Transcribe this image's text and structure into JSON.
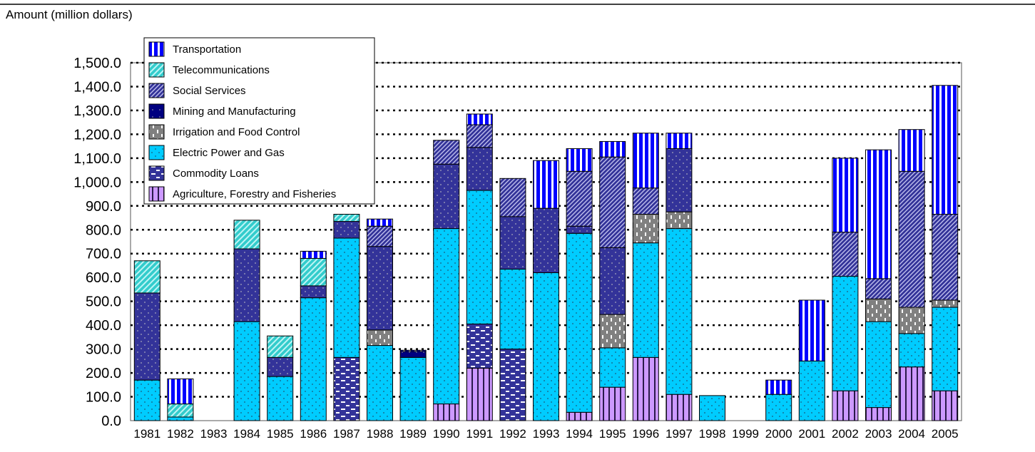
{
  "chart_data": {
    "type": "bar",
    "stacked": true,
    "ylabel": "Amount (million dollars)",
    "xlabel": "",
    "ylim": [
      0,
      1500
    ],
    "yticks": [
      0,
      100,
      200,
      300,
      400,
      500,
      600,
      700,
      800,
      900,
      1000,
      1100,
      1200,
      1300,
      1400,
      1500
    ],
    "ytick_labels": [
      "0.0",
      "100.0",
      "200.0",
      "300.0",
      "400.0",
      "500.0",
      "600.0",
      "700.0",
      "800.0",
      "900.0",
      "1,000.0",
      "1,100.0",
      "1,200.0",
      "1,300.0",
      "1,400.0",
      "1,500.0"
    ],
    "grid": "horizontal dotted",
    "legend_position": "top-left",
    "categories": [
      "1981",
      "1982",
      "1983",
      "1984",
      "1985",
      "1986",
      "1987",
      "1988",
      "1989",
      "1990",
      "1991",
      "1992",
      "1993",
      "1994",
      "1995",
      "1996",
      "1997",
      "1998",
      "1999",
      "2000",
      "2001",
      "2002",
      "2003",
      "2004",
      "2005"
    ],
    "series": [
      {
        "name": "Agriculture, Forestry and Fisheries",
        "color": "#cc99ff",
        "values": [
          0,
          0,
          0,
          0,
          0,
          0,
          0,
          0,
          0,
          70,
          220,
          0,
          0,
          35,
          140,
          265,
          110,
          0,
          0,
          0,
          0,
          125,
          55,
          225,
          125
        ]
      },
      {
        "name": "Commodity Loans",
        "color": "#1a3a8c",
        "values": [
          0,
          0,
          0,
          0,
          0,
          0,
          265,
          0,
          0,
          0,
          185,
          300,
          0,
          0,
          0,
          0,
          0,
          0,
          0,
          0,
          0,
          0,
          0,
          0,
          0
        ]
      },
      {
        "name": "Electric Power and Gas",
        "color": "#00ccff",
        "values": [
          170,
          15,
          0,
          415,
          185,
          515,
          500,
          315,
          265,
          735,
          560,
          335,
          620,
          750,
          165,
          480,
          695,
          105,
          0,
          110,
          250,
          480,
          360,
          140,
          350
        ]
      },
      {
        "name": "Irrigation and Food Control",
        "color": "#808080",
        "values": [
          0,
          0,
          0,
          0,
          0,
          0,
          0,
          65,
          0,
          0,
          0,
          0,
          0,
          0,
          140,
          120,
          70,
          0,
          0,
          0,
          0,
          0,
          95,
          110,
          30
        ]
      },
      {
        "name": "Mining and Manufacturing",
        "color": "#000080",
        "values": [
          0,
          0,
          0,
          0,
          0,
          0,
          0,
          0,
          25,
          0,
          0,
          0,
          0,
          0,
          0,
          0,
          0,
          0,
          0,
          0,
          0,
          0,
          0,
          0,
          0
        ]
      },
      {
        "name": "Social Services",
        "color": "#333399",
        "values": [
          365,
          0,
          0,
          305,
          80,
          50,
          70,
          350,
          0,
          270,
          180,
          220,
          270,
          30,
          280,
          0,
          265,
          0,
          0,
          0,
          0,
          0,
          0,
          0,
          0
        ]
      },
      {
        "name": "Social Services",
        "color": "#5555bb",
        "values": [
          0,
          0,
          0,
          0,
          0,
          0,
          0,
          85,
          0,
          100,
          95,
          160,
          0,
          230,
          380,
          110,
          0,
          0,
          0,
          0,
          0,
          185,
          85,
          570,
          360
        ]
      },
      {
        "name": "Telecommunications",
        "color": "#33cccc",
        "values": [
          135,
          55,
          0,
          120,
          90,
          115,
          30,
          0,
          0,
          0,
          0,
          0,
          0,
          0,
          0,
          0,
          0,
          0,
          0,
          0,
          0,
          0,
          0,
          0,
          0
        ]
      },
      {
        "name": "Transportation",
        "color": "#0000ff",
        "values": [
          0,
          105,
          0,
          0,
          0,
          30,
          0,
          30,
          5,
          0,
          45,
          0,
          200,
          95,
          65,
          230,
          65,
          0,
          0,
          60,
          255,
          310,
          540,
          175,
          540
        ]
      }
    ],
    "legend": [
      {
        "label": "Transportation",
        "color": "#0000ff",
        "pattern": "vstripe"
      },
      {
        "label": "Telecommunications",
        "color": "#33cccc",
        "pattern": "diag-light"
      },
      {
        "label": "Social Services",
        "color": "#5555bb",
        "pattern": "diag-dense"
      },
      {
        "label": "Mining and Manufacturing",
        "color": "#000080",
        "pattern": "dots-dark"
      },
      {
        "label": "Irrigation and Food Control",
        "color": "#808080",
        "pattern": "dash-v"
      },
      {
        "label": "Electric Power and Gas",
        "color": "#00ccff",
        "pattern": "dots"
      },
      {
        "label": "Commodity Loans",
        "color": "#1a3a8c",
        "pattern": "dash-h"
      },
      {
        "label": "Agriculture, Forestry and Fisheries",
        "color": "#cc99ff",
        "pattern": "vstripe-light"
      }
    ]
  }
}
